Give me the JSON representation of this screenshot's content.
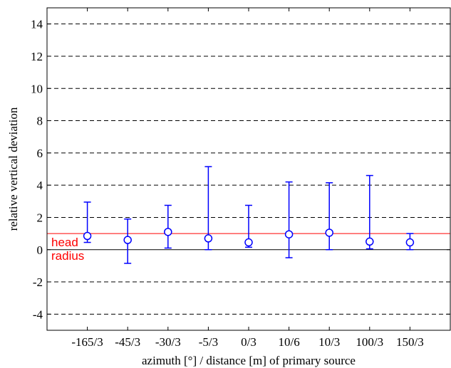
{
  "chart_data": {
    "type": "scatter",
    "title": "",
    "xlabel": "azimuth [°] / distance [m] of primary source",
    "ylabel": "relative vertical deviation",
    "categories": [
      "-165/3",
      "-45/3",
      "-30/3",
      "-5/3",
      "0/3",
      "10/6",
      "10/3",
      "100/3",
      "150/3"
    ],
    "series": [
      {
        "mean": [
          0.85,
          0.6,
          1.1,
          0.7,
          0.45,
          0.95,
          1.05,
          0.5,
          0.45
        ],
        "lower": [
          0.45,
          -0.85,
          0.1,
          0.0,
          0.15,
          -0.5,
          0.0,
          0.05,
          0.0
        ],
        "upper": [
          2.95,
          1.9,
          2.75,
          5.15,
          2.75,
          4.2,
          4.15,
          4.6,
          1.0
        ]
      }
    ],
    "ylim": [
      -5,
      15
    ],
    "yticks": [
      -4,
      -2,
      0,
      2,
      4,
      6,
      8,
      10,
      12,
      14
    ],
    "reference_lines": [
      {
        "y": 1,
        "label_line1": "head",
        "label_line2": "radius",
        "color": "#ff0000"
      },
      {
        "y": 0,
        "color": "#000000"
      }
    ],
    "grid": "horizontal-dashed",
    "colors": {
      "series": "#0000ff",
      "reference": "#ff0000"
    }
  }
}
